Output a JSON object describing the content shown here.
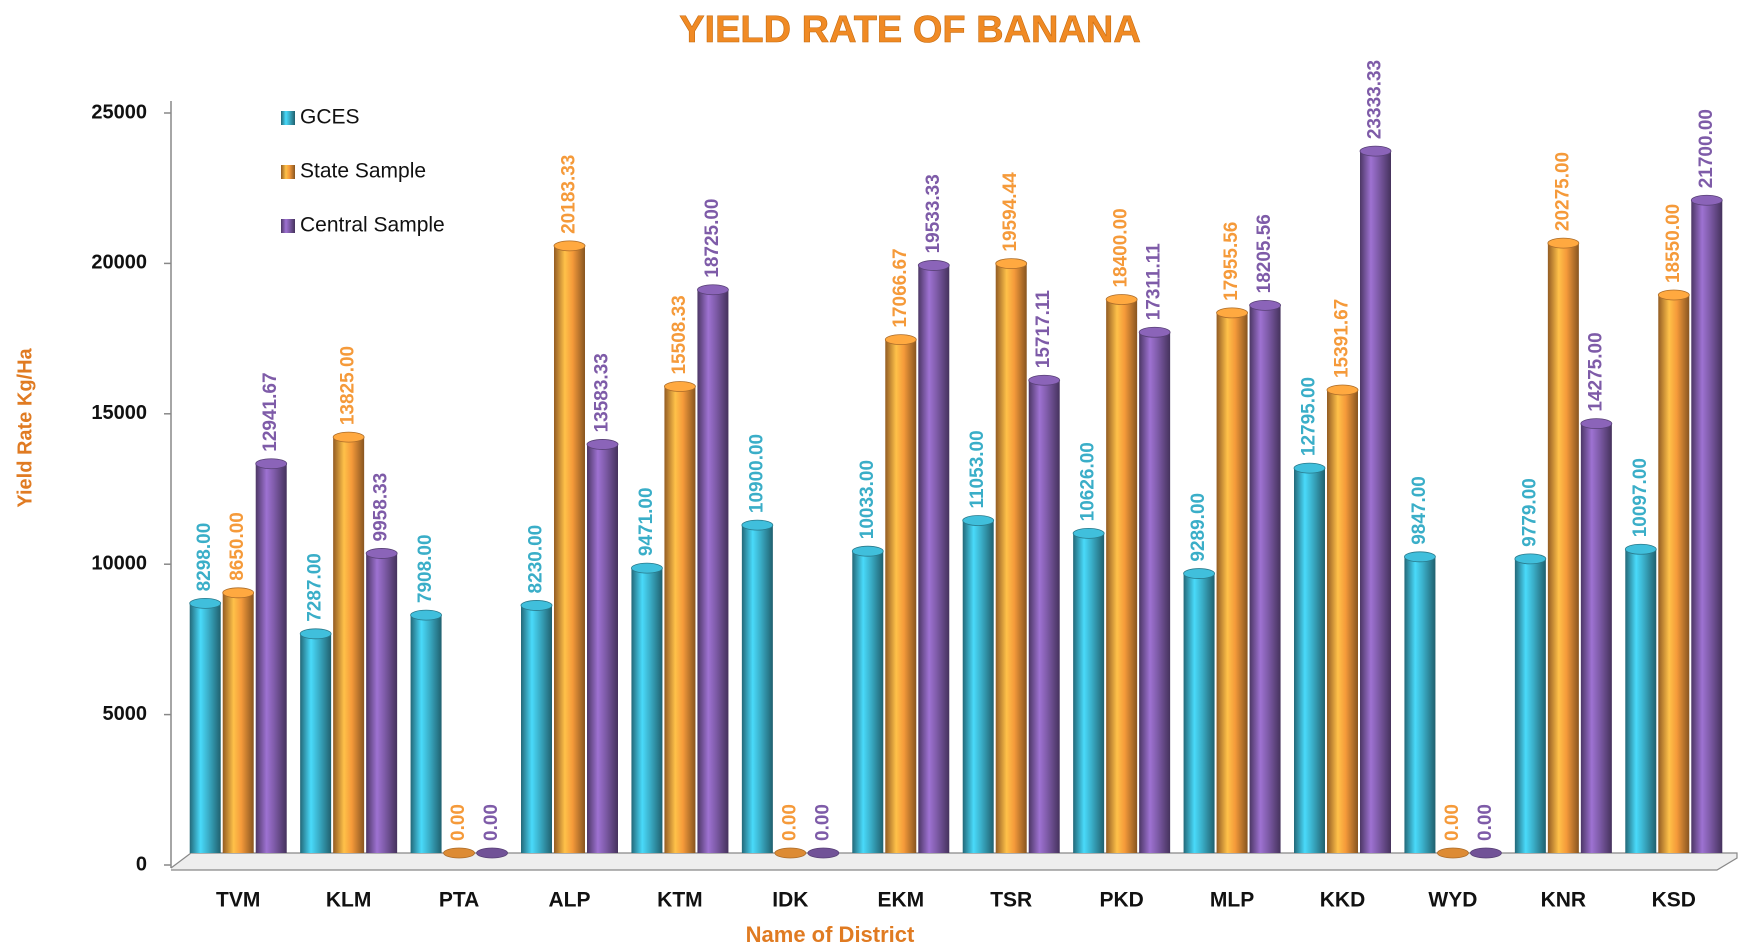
{
  "chart_data": {
    "type": "bar",
    "title": "YIELD RATE OF BANANA",
    "x_label": "Name of District",
    "y_label": "Yield Rate Kg/Ha",
    "categories": [
      "TVM",
      "KLM",
      "PTA",
      "ALP",
      "KTM",
      "IDK",
      "EKM",
      "TSR",
      "PKD",
      "MLP",
      "KKD",
      "WYD",
      "KNR",
      "KSD"
    ],
    "series": [
      {
        "name": "GCES",
        "color": "#3aaec8",
        "values": [
          8298,
          7287,
          7908,
          8230,
          9471,
          10900,
          10033,
          11053,
          10626,
          9289,
          12795,
          9847,
          9779,
          10097
        ],
        "value_labels": [
          "8298.00",
          "7287.00",
          "7908.00",
          "8230.00",
          "9471.00",
          "10900.00",
          "10033.00",
          "11053.00",
          "10626.00",
          "9289.00",
          "12795.00",
          "9847.00",
          "9779.00",
          "10097.00"
        ]
      },
      {
        "name": "State Sample",
        "color": "#f59a3a",
        "values": [
          8650,
          13825,
          0,
          20183.33,
          15508.33,
          0,
          17066.67,
          19594.44,
          18400,
          17955.56,
          15391.67,
          0,
          20275,
          18550
        ],
        "value_labels": [
          "8650.00",
          "13825.00",
          "0.00",
          "20183.33",
          "15508.33",
          "0.00",
          "17066.67",
          "19594.44",
          "18400.00",
          "17955.56",
          "15391.67",
          "0.00",
          "20275.00",
          "18550.00"
        ]
      },
      {
        "name": "Central Sample",
        "color": "#7e5ba8",
        "values": [
          12941.67,
          9958.33,
          0,
          13583.33,
          18725,
          0,
          19533.33,
          15717.11,
          17311.11,
          18205.56,
          23333.33,
          0,
          14275,
          21700
        ],
        "value_labels": [
          "12941.67",
          "9958.33",
          "0.00",
          "13583.33",
          "18725.00",
          "0.00",
          "19533.33",
          "15717.11",
          "17311.11",
          "18205.56",
          "23333.33",
          "0.00",
          "14275.00",
          "21700.00"
        ]
      }
    ],
    "ylim": [
      0,
      25000
    ],
    "yticks": [
      0,
      5000,
      10000,
      15000,
      20000,
      25000
    ]
  }
}
